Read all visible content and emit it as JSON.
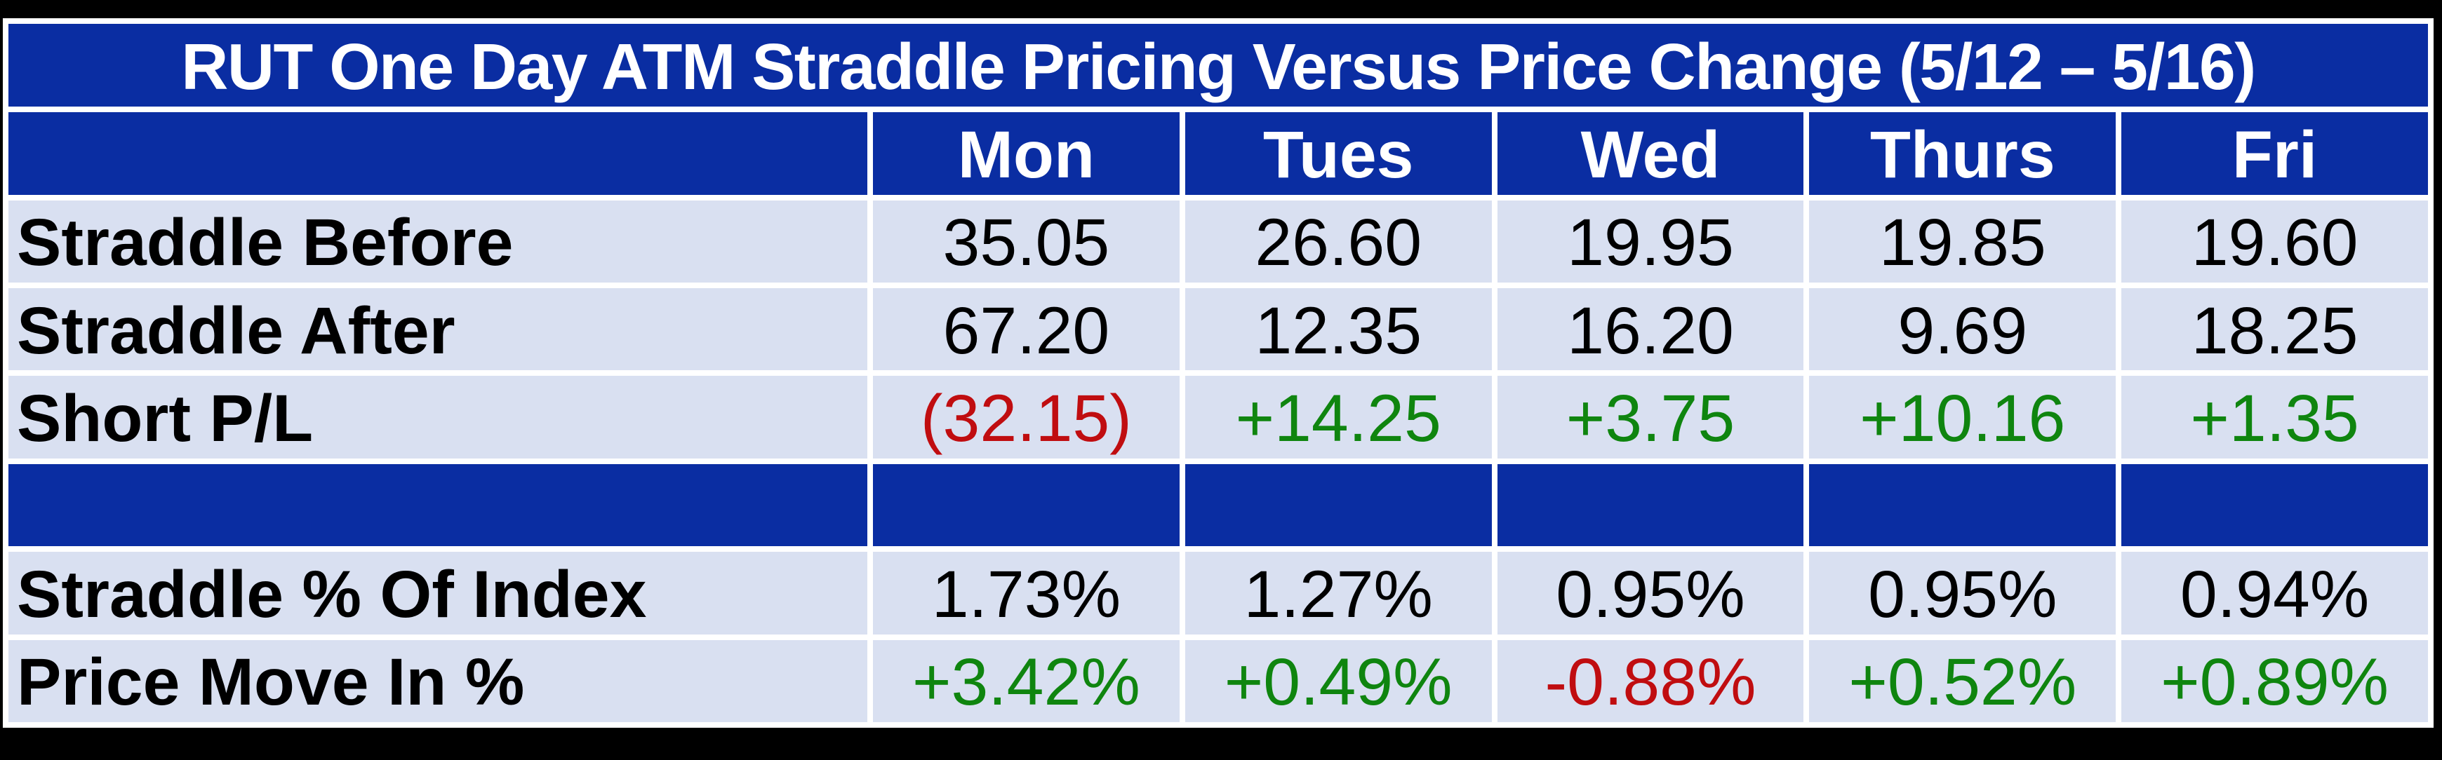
{
  "chart_data": {
    "type": "table",
    "title": "RUT One Day ATM Straddle Pricing Versus Price Change (5/12 – 5/16)",
    "columns": [
      "Mon",
      "Tues",
      "Wed",
      "Thurs",
      "Fri"
    ],
    "rows": [
      {
        "label": "Straddle Before",
        "values": [
          "35.05",
          "26.60",
          "19.95",
          "19.85",
          "19.60"
        ],
        "value_colors": [
          "black",
          "black",
          "black",
          "black",
          "black"
        ]
      },
      {
        "label": "Straddle After",
        "values": [
          "67.20",
          "12.35",
          "16.20",
          "9.69",
          "18.25"
        ],
        "value_colors": [
          "black",
          "black",
          "black",
          "black",
          "black"
        ]
      },
      {
        "label": "Short P/L",
        "values": [
          "(32.15)",
          "+14.25",
          "+3.75",
          "+10.16",
          "+1.35"
        ],
        "value_colors": [
          "red",
          "green",
          "green",
          "green",
          "green"
        ]
      },
      {
        "label": "",
        "values": [
          "",
          "",
          "",
          "",
          ""
        ]
      },
      {
        "label": "Straddle % Of Index",
        "values": [
          "1.73%",
          "1.27%",
          "0.95%",
          "0.95%",
          "0.94%"
        ],
        "value_colors": [
          "black",
          "black",
          "black",
          "black",
          "black"
        ]
      },
      {
        "label": "Price Move In %",
        "values": [
          "+3.42%",
          "+0.49%",
          "-0.88%",
          "+0.52%",
          "+0.89%"
        ],
        "value_colors": [
          "green",
          "green",
          "red",
          "green",
          "green"
        ]
      }
    ],
    "layout_hints": {
      "title_position": "top-row-spanning-all-columns",
      "spacer_row_index": 3,
      "grid": "white-8px-gaps"
    }
  },
  "colors": {
    "table_blue": "#0A2DA2",
    "row_light_blue": "#D9E0F1",
    "positive_green": "#0F850F",
    "negative_red": "#C00D10",
    "header_text_white": "#FFFFFF",
    "value_text_black": "#000000",
    "grid_white": "#FFFFFF",
    "background_black": "#000000"
  }
}
